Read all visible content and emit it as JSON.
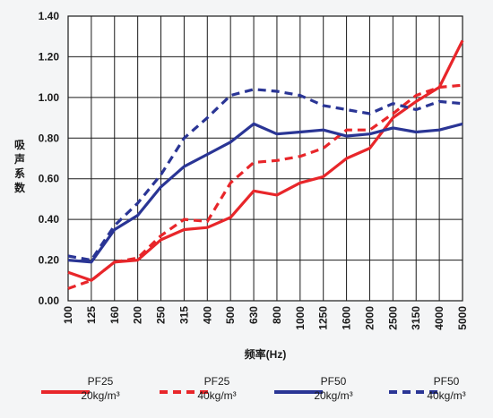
{
  "chart_data": {
    "type": "line",
    "title": "",
    "xlabel": "频率(Hz)",
    "ylabel": "吸声系数",
    "ylim": [
      0.0,
      1.4
    ],
    "yticks": [
      "0.00",
      "0.20",
      "0.40",
      "0.60",
      "0.80",
      "1.00",
      "1.20",
      "1.40"
    ],
    "categories": [
      "100",
      "125",
      "160",
      "200",
      "250",
      "315",
      "400",
      "500",
      "630",
      "800",
      "1000",
      "1250",
      "1600",
      "2000",
      "2500",
      "3150",
      "4000",
      "5000"
    ],
    "grid": true,
    "legend_position": "bottom",
    "series": [
      {
        "name": "PF25",
        "sublabel": "20kg/m³",
        "color": "#e8262a",
        "dash": "solid",
        "values": [
          0.14,
          0.1,
          0.19,
          0.2,
          0.3,
          0.35,
          0.36,
          0.41,
          0.54,
          0.52,
          0.58,
          0.61,
          0.7,
          0.75,
          0.9,
          0.98,
          1.05,
          1.28
        ]
      },
      {
        "name": "PF25",
        "sublabel": "40kg/m³",
        "color": "#e8262a",
        "dash": "dashed",
        "values": [
          0.06,
          0.1,
          0.19,
          0.21,
          0.32,
          0.4,
          0.39,
          0.58,
          0.68,
          0.69,
          0.71,
          0.75,
          0.84,
          0.84,
          0.92,
          1.01,
          1.05,
          1.06
        ]
      },
      {
        "name": "PF50",
        "sublabel": "20kg/m³",
        "color": "#2a3595",
        "dash": "solid",
        "values": [
          0.2,
          0.19,
          0.35,
          0.42,
          0.56,
          0.66,
          0.72,
          0.78,
          0.87,
          0.82,
          0.83,
          0.84,
          0.81,
          0.82,
          0.85,
          0.83,
          0.84,
          0.87
        ]
      },
      {
        "name": "PF50",
        "sublabel": "40kg/m³",
        "color": "#2a3595",
        "dash": "dashed",
        "values": [
          0.22,
          0.2,
          0.37,
          0.48,
          0.62,
          0.8,
          0.9,
          1.01,
          1.04,
          1.03,
          1.01,
          0.96,
          0.94,
          0.92,
          0.97,
          0.94,
          0.98,
          0.97
        ]
      }
    ]
  }
}
